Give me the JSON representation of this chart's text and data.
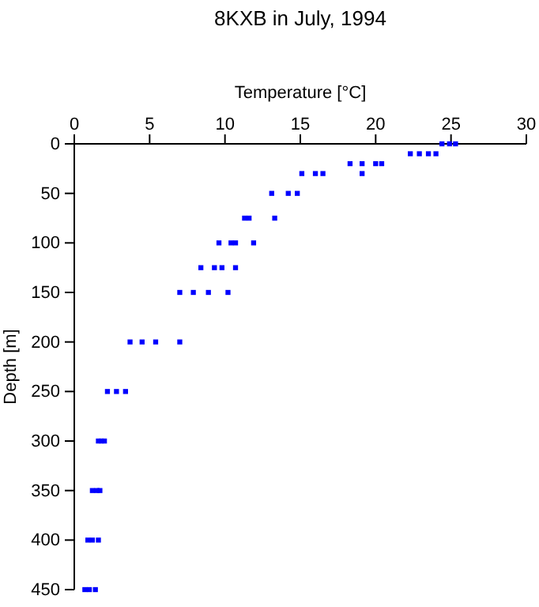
{
  "chart_data": {
    "type": "scatter",
    "title": "8KXB in July, 1994",
    "xlabel": "Temperature [°C]",
    "ylabel": "Depth [m]",
    "xlim": [
      0,
      30
    ],
    "xticks": [
      0,
      5,
      10,
      15,
      20,
      25,
      30
    ],
    "ylim": [
      450,
      0
    ],
    "yticks": [
      0,
      50,
      100,
      150,
      200,
      250,
      300,
      350,
      400,
      450
    ],
    "marker": "square",
    "series": [
      {
        "color": "#0000ff",
        "x": [
          24.4,
          24.9,
          25.3,
          22.3,
          22.9,
          23.5,
          24.0,
          18.3,
          19.1,
          20.0,
          20.4,
          15.1,
          16.0,
          16.5,
          19.1,
          13.1,
          14.2,
          14.8,
          11.3,
          11.6,
          13.3,
          9.6,
          10.4,
          10.7,
          11.9,
          8.4,
          9.3,
          9.8,
          10.7,
          7.0,
          7.9,
          8.9,
          10.2,
          3.7,
          4.5,
          5.4,
          7.0,
          2.2,
          2.8,
          3.4,
          1.6,
          1.8,
          2.0,
          1.2,
          1.5,
          1.7,
          0.9,
          1.2,
          1.6,
          0.7,
          1.0,
          1.4
        ],
        "values": [
          0,
          0,
          0,
          10,
          10,
          10,
          10,
          20,
          20,
          20,
          20,
          30,
          30,
          30,
          30,
          50,
          50,
          50,
          75,
          75,
          75,
          100,
          100,
          100,
          100,
          125,
          125,
          125,
          125,
          150,
          150,
          150,
          150,
          200,
          200,
          200,
          200,
          250,
          250,
          250,
          300,
          300,
          300,
          350,
          350,
          350,
          400,
          400,
          400,
          450,
          450,
          450
        ]
      }
    ]
  }
}
